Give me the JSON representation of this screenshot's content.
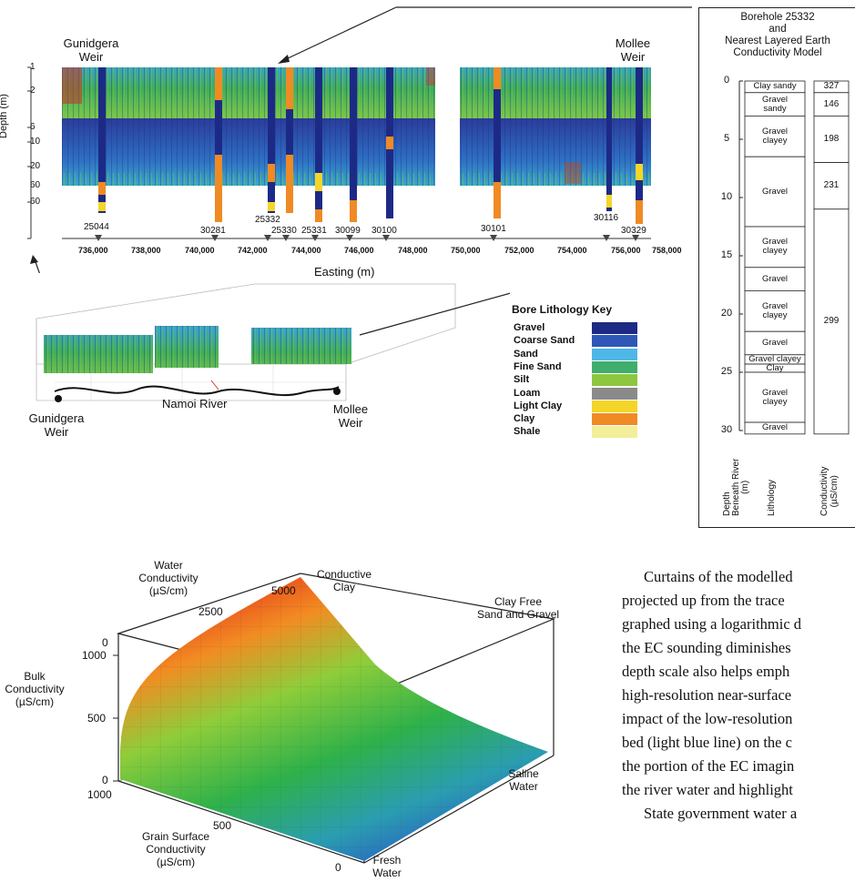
{
  "top_section": {
    "left_weir": [
      "Gunidgera",
      "Weir"
    ],
    "right_weir": [
      "Mollee",
      "Weir"
    ],
    "depth_axis_label": "Depth (m)",
    "depth_ticks": [
      "1",
      "2",
      "6",
      "10",
      "20",
      "60",
      "60"
    ],
    "easting_ticks": [
      "736,000",
      "738,000",
      "740,000",
      "742,000",
      "744,000",
      "746,000",
      "748,000",
      "750,000",
      "752,000",
      "754,000",
      "756,000",
      "758,000"
    ],
    "easting_label": "Easting (m)",
    "bore_labels": [
      "25044",
      "30281",
      "25332",
      "25330",
      "25331",
      "30099",
      "30100",
      "30101",
      "30116",
      "30329"
    ]
  },
  "map3d": {
    "left_weir": [
      "Gunidgera",
      "Weir"
    ],
    "right_weir": [
      "Mollee",
      "Weir"
    ],
    "river_label": "Namoi River"
  },
  "lithology_key": {
    "title": "Bore Lithology Key",
    "items": [
      {
        "name": "Gravel",
        "color": "#1d2a85"
      },
      {
        "name": "Coarse Sand",
        "color": "#2f57b8"
      },
      {
        "name": "Sand",
        "color": "#4fb7e8"
      },
      {
        "name": "Fine Sand",
        "color": "#3fae6a"
      },
      {
        "name": "Silt",
        "color": "#8dc63f"
      },
      {
        "name": "Loam",
        "color": "#8a8a8a"
      },
      {
        "name": "Light Clay",
        "color": "#f4d52a"
      },
      {
        "name": "Clay",
        "color": "#f08a24"
      },
      {
        "name": "Shale",
        "color": "#f3ee9a"
      }
    ]
  },
  "borehole": {
    "title": [
      "Borehole 25332",
      "and",
      "Nearest Layered Earth",
      "Conductivity Model"
    ],
    "depth_ticks": [
      "0",
      "5",
      "10",
      "15",
      "20",
      "25",
      "30"
    ],
    "lithology_layers": [
      {
        "label": [
          "Clay sandy"
        ],
        "top": 0,
        "bottom": 1
      },
      {
        "label": [
          "Gravel",
          "sandy"
        ],
        "top": 1,
        "bottom": 3
      },
      {
        "label": [
          "Gravel",
          "clayey"
        ],
        "top": 3,
        "bottom": 6.5
      },
      {
        "label": [
          "Gravel"
        ],
        "top": 6.5,
        "bottom": 12.5
      },
      {
        "label": [
          "Gravel",
          "clayey"
        ],
        "top": 12.5,
        "bottom": 16
      },
      {
        "label": [
          "Gravel"
        ],
        "top": 16,
        "bottom": 18
      },
      {
        "label": [
          "Gravel",
          "clayey"
        ],
        "top": 18,
        "bottom": 21.5
      },
      {
        "label": [
          "Gravel"
        ],
        "top": 21.5,
        "bottom": 23.5
      },
      {
        "label": [
          "Gravel clayey"
        ],
        "top": 23.5,
        "bottom": 24.3
      },
      {
        "label": [
          "Clay"
        ],
        "top": 24.3,
        "bottom": 25
      },
      {
        "label": [
          "Gravel",
          "clayey"
        ],
        "top": 25,
        "bottom": 29.3
      },
      {
        "label": [
          "Gravel"
        ],
        "top": 29.3,
        "bottom": 30.3
      }
    ],
    "conductivity_layers": [
      {
        "value": "327",
        "top": 0,
        "bottom": 1
      },
      {
        "value": "146",
        "top": 1,
        "bottom": 3
      },
      {
        "value": "198",
        "top": 3,
        "bottom": 7
      },
      {
        "value": "231",
        "top": 7,
        "bottom": 11
      },
      {
        "value": "299",
        "top": 11,
        "bottom": 30.3
      }
    ],
    "col_depth": [
      "Depth",
      "Beneath River",
      "(m)"
    ],
    "col_lithology": "Lithology",
    "col_conductivity": [
      "Conductivity",
      "(µS/cm)"
    ]
  },
  "surface_plot": {
    "water_conductivity": [
      "Water",
      "Conductivity",
      "(µS/cm)"
    ],
    "water_ticks": [
      "5000",
      "2500"
    ],
    "conductive_clay": [
      "Conductive",
      "Clay"
    ],
    "clay_free": [
      "Clay Free",
      "Sand and Gravel"
    ],
    "bulk_conductivity": [
      "Bulk",
      "Conductivity",
      "(µS/cm)"
    ],
    "bulk_ticks": [
      "0",
      "1000",
      "500",
      "0"
    ],
    "grain_ticks": [
      "1000",
      "500",
      "0"
    ],
    "grain_surface": [
      "Grain Surface",
      "Conductivity",
      "(µS/cm)"
    ],
    "saline_water": [
      "Saline",
      "Water"
    ],
    "fresh_water": [
      "Fresh",
      "Water"
    ]
  },
  "body_text": [
    "Curtains of the modelled",
    "projected up from the trace",
    "graphed using a logarithmic d",
    "the EC sounding diminishes",
    "depth scale also helps emph",
    "high-resolution  near-surface",
    "impact of the low-resolution",
    "bed (light blue line) on the c",
    "the portion of the EC imagin",
    "the river water and highlight",
    "State government water a"
  ]
}
